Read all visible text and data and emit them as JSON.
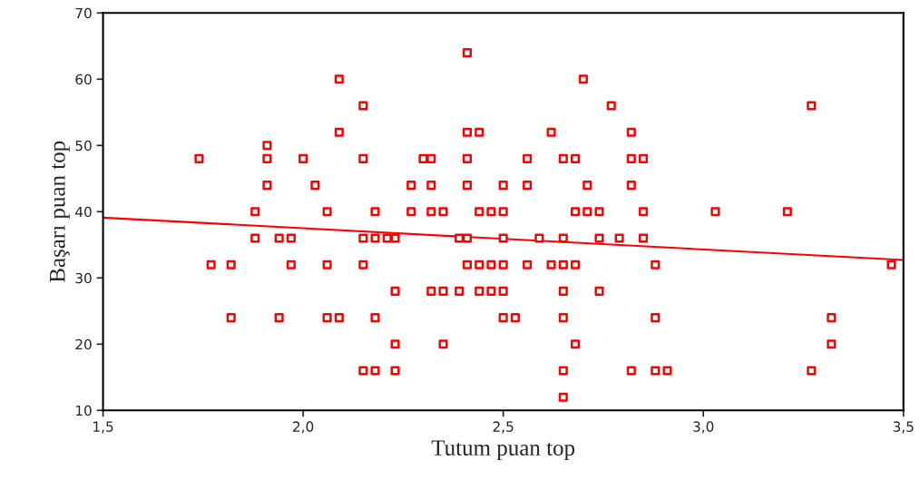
{
  "chart_data": {
    "type": "scatter",
    "xlabel": "Tutum puan top",
    "ylabel": "Başarı puan top",
    "xlim": [
      1.5,
      3.5
    ],
    "ylim": [
      10,
      70
    ],
    "xticks": [
      {
        "value": 1.5,
        "label": "1,5"
      },
      {
        "value": 2.0,
        "label": "2,0"
      },
      {
        "value": 2.5,
        "label": "2,5"
      },
      {
        "value": 3.0,
        "label": "3,0"
      },
      {
        "value": 3.5,
        "label": "3,5"
      }
    ],
    "yticks": [
      10,
      20,
      30,
      40,
      50,
      60,
      70
    ],
    "grid": false,
    "legend": false,
    "series": [
      {
        "marker": "square",
        "color": "#ff0000",
        "x": [
          2.41,
          2.09,
          2.7,
          2.15,
          2.77,
          3.27,
          2.09,
          2.41,
          2.44,
          2.62,
          2.82,
          1.91,
          1.74,
          1.91,
          2.0,
          2.15,
          2.3,
          2.32,
          2.41,
          2.56,
          2.65,
          2.68,
          2.82,
          2.85,
          1.91,
          2.03,
          2.27,
          2.32,
          2.41,
          2.5,
          2.56,
          2.71,
          2.82,
          1.88,
          2.06,
          2.18,
          2.27,
          2.32,
          2.35,
          2.44,
          2.47,
          2.5,
          2.68,
          2.71,
          2.74,
          2.85,
          3.03,
          3.21,
          1.88,
          1.94,
          1.97,
          2.15,
          2.18,
          2.21,
          2.23,
          2.39,
          2.41,
          2.5,
          2.59,
          2.65,
          2.74,
          2.79,
          2.85,
          1.77,
          1.82,
          1.97,
          2.06,
          2.15,
          2.41,
          2.44,
          2.47,
          2.5,
          2.56,
          2.62,
          2.65,
          2.68,
          2.88,
          3.47,
          2.23,
          2.32,
          2.35,
          2.39,
          2.44,
          2.47,
          2.5,
          2.65,
          2.74,
          1.82,
          1.94,
          2.06,
          2.09,
          2.18,
          2.5,
          2.53,
          2.65,
          2.88,
          3.32,
          2.23,
          2.35,
          2.68,
          3.32,
          2.15,
          2.18,
          2.23,
          2.65,
          2.82,
          2.88,
          2.91,
          3.27,
          2.65
        ],
        "values": [
          64,
          60,
          60,
          56,
          56,
          56,
          52,
          52,
          52,
          52,
          52,
          50,
          48,
          48,
          48,
          48,
          48,
          48,
          48,
          48,
          48,
          48,
          48,
          48,
          44,
          44,
          44,
          44,
          44,
          44,
          44,
          44,
          44,
          40,
          40,
          40,
          40,
          40,
          40,
          40,
          40,
          40,
          40,
          40,
          40,
          40,
          40,
          40,
          36,
          36,
          36,
          36,
          36,
          36,
          36,
          36,
          36,
          36,
          36,
          36,
          36,
          36,
          36,
          32,
          32,
          32,
          32,
          32,
          32,
          32,
          32,
          32,
          32,
          32,
          32,
          32,
          32,
          32,
          28,
          28,
          28,
          28,
          28,
          28,
          28,
          28,
          28,
          24,
          24,
          24,
          24,
          24,
          24,
          24,
          24,
          24,
          24,
          20,
          20,
          20,
          20,
          16,
          16,
          16,
          16,
          16,
          16,
          16,
          16,
          12
        ]
      },
      {
        "type": "line",
        "color": "#ff0000",
        "x": [
          1.5,
          3.5
        ],
        "values": [
          39.1,
          32.7
        ]
      }
    ]
  }
}
